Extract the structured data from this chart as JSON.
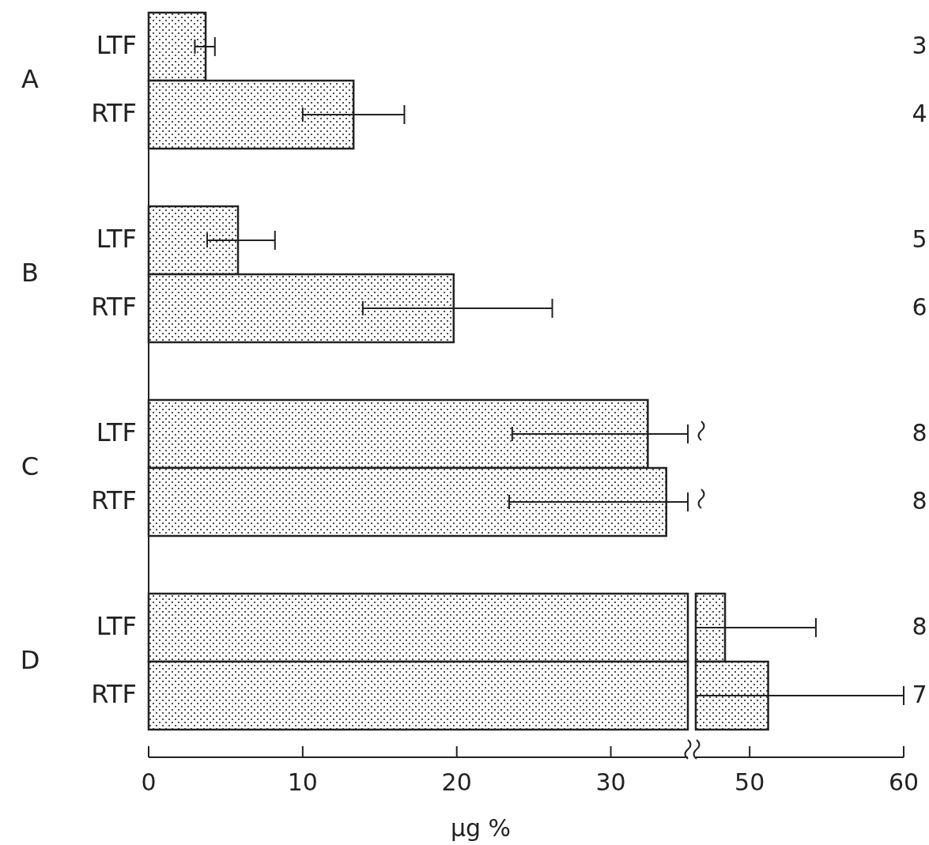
{
  "chart_data": [
    {
      "type": "bar",
      "orientation": "horizontal",
      "categories": [
        "A",
        "B",
        "C",
        "D"
      ],
      "series": [
        {
          "name": "LTF",
          "color": "#222222",
          "values": [
            3.7,
            5.8,
            32.4,
            35
          ],
          "errors": [
            [
              3.0,
              4.3
            ],
            [
              3.8,
              8.2
            ],
            [
              23.6,
              35
            ],
            null
          ]
        },
        {
          "name": "RTF",
          "color": "#222222",
          "values": [
            13.3,
            19.8,
            33.6,
            35
          ],
          "errors": [
            [
              10.0,
              16.6
            ],
            [
              13.9,
              26.2
            ],
            [
              23.4,
              35
            ],
            null
          ]
        }
      ],
      "xlim": [
        0,
        35
      ],
      "xticks": [
        0,
        10,
        20,
        30
      ],
      "xlabel": "μg %",
      "annotations": [
        "3",
        "4",
        "5",
        "6",
        "8",
        "8",
        "8",
        "7"
      ]
    },
    {
      "type": "bar",
      "orientation": "horizontal",
      "categories": [
        null,
        null,
        null,
        null
      ],
      "series": [
        {
          "color": "#222222",
          "values": [
            null,
            null,
            null,
            48.4
          ],
          "errors": [
            null,
            null,
            null,
            [
              46.5,
              54.3
            ]
          ]
        },
        {
          "color": "#222222",
          "values": [
            null,
            null,
            null,
            51.2
          ],
          "errors": [
            null,
            null,
            null,
            [
              46.5,
              60
            ]
          ]
        }
      ],
      "xlim": [
        46.5,
        60
      ],
      "xticks": [
        50,
        60
      ],
      "tick_labels": "x"
    }
  ]
}
